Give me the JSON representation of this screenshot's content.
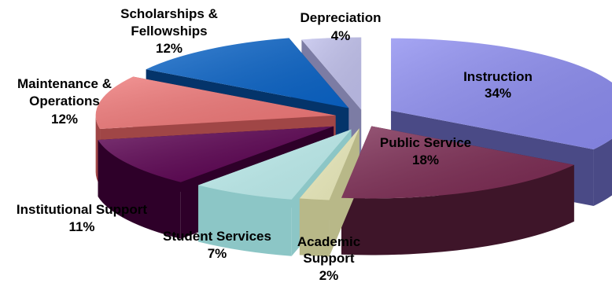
{
  "chart_data": {
    "type": "pie",
    "title": "",
    "style": "3d-exploded",
    "slices": [
      {
        "label": "Instruction",
        "pct_label": "34%",
        "value": 34,
        "color": "#8c8cf0",
        "side_color": "#4a4a86"
      },
      {
        "label": "Public Service",
        "pct_label": "18%",
        "value": 18,
        "color": "#7b2a52",
        "side_color": "#3e1529"
      },
      {
        "label": "Academic Support",
        "pct_label": "2%",
        "value": 2,
        "color": "#eeeebe",
        "side_color": "#b8b888"
      },
      {
        "label": "Student Services",
        "pct_label": "7%",
        "value": 7,
        "color": "#bff0f0",
        "side_color": "#8cc6c6"
      },
      {
        "label": "Institutional Support",
        "pct_label": "11%",
        "value": 11,
        "color": "#5a0050",
        "side_color": "#2e0029"
      },
      {
        "label": "Maintenance & Operations",
        "pct_label": "12%",
        "value": 12,
        "color": "#f07878",
        "side_color": "#a04646"
      },
      {
        "label": "Scholarships & Fellowships",
        "pct_label": "12%",
        "value": 12,
        "color": "#0a64c8",
        "side_color": "#04346a"
      },
      {
        "label": "Depreciation",
        "pct_label": "4%",
        "value": 4,
        "color": "#c2c2ee",
        "side_color": "#7c7ca4"
      }
    ]
  }
}
